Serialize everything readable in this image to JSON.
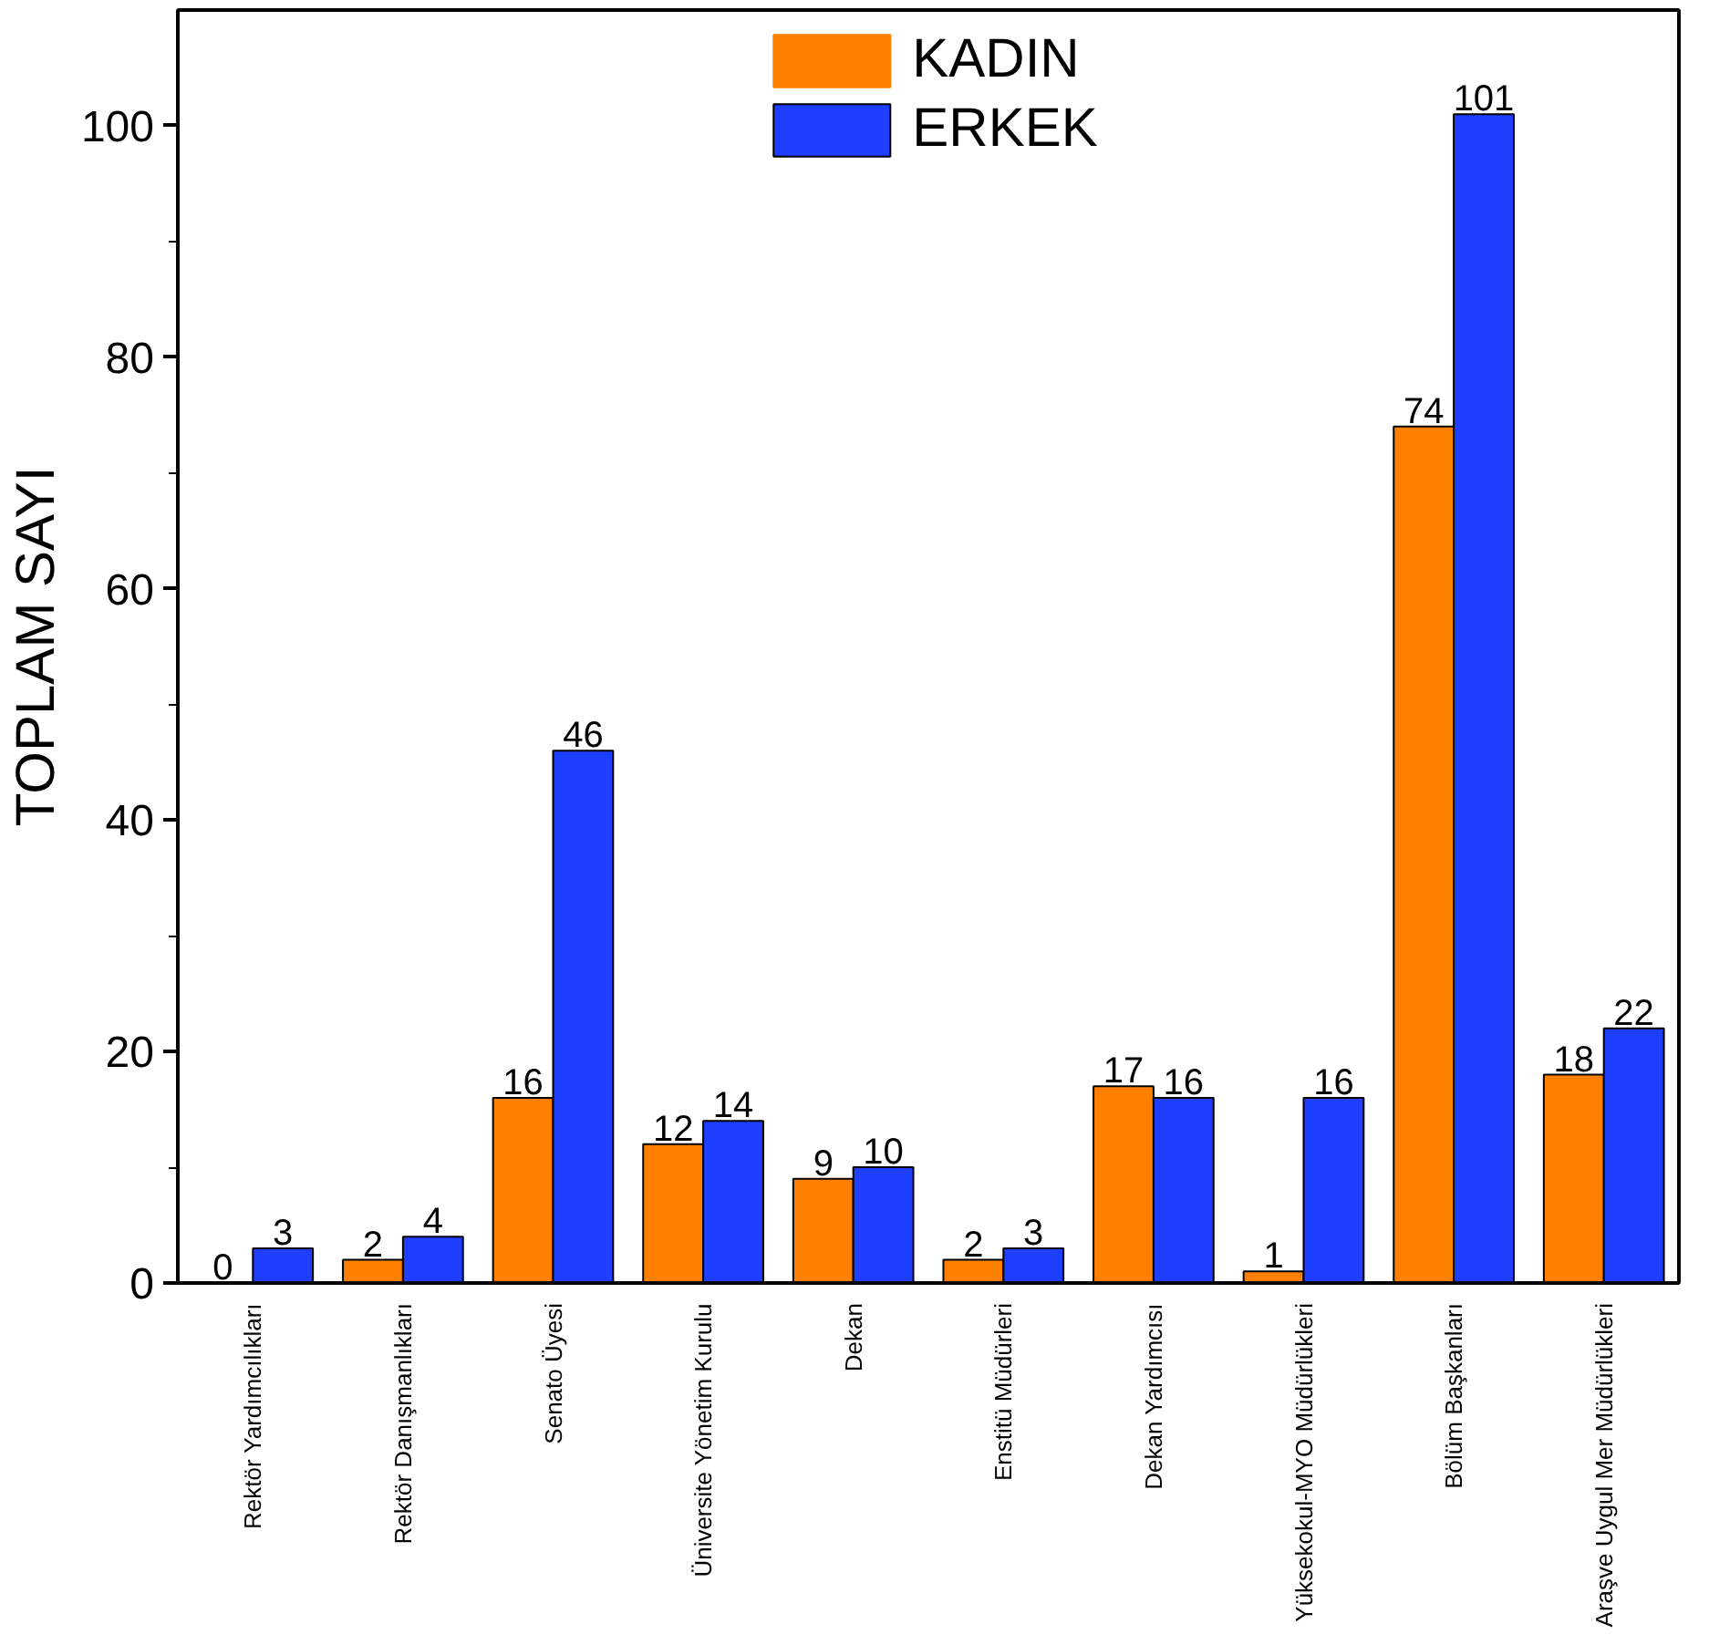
{
  "chart_data": {
    "type": "bar",
    "ylabel": "TOPLAM SAYI",
    "categories": [
      "Rektör Yardımcılıkları",
      "Rektör Danışmanlıkları",
      "Senato Üyesi",
      "Üniversite Yönetim Kurulu",
      "Dekan",
      "Enstitü Müdürleri",
      "Dekan Yardımcısı",
      "Yüksekokul-MYO Müdürlükleri",
      "Bölüm Başkanları",
      "Araşve Uygul Mer Müdürlükleri"
    ],
    "series": [
      {
        "name": "KADIN",
        "color": "#ff8000",
        "values": [
          0,
          2,
          16,
          12,
          9,
          2,
          17,
          1,
          74,
          18
        ]
      },
      {
        "name": "ERKEK",
        "color": "#1f3fff",
        "values": [
          3,
          4,
          46,
          14,
          10,
          3,
          16,
          16,
          101,
          22
        ]
      }
    ],
    "ylim": [
      0,
      110
    ],
    "yticks": [
      0,
      20,
      40,
      60,
      80,
      100
    ],
    "data_labels": true,
    "grid": false,
    "legend": "top"
  }
}
